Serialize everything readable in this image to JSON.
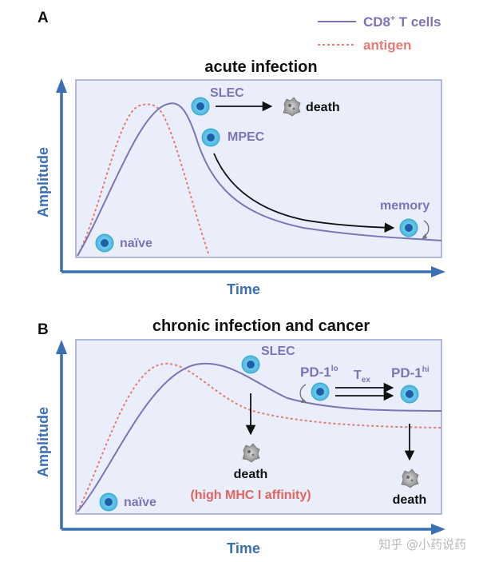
{
  "legend": {
    "cd8_base": "CD8",
    "cd8_sup": "+",
    "cd8_rest": " T cells",
    "antigen": "antigen"
  },
  "panel_a": {
    "letter": "A",
    "title": "acute infection",
    "y_axis": "Amplitude",
    "x_axis": "Time",
    "naive": "naïve",
    "slec": "SLEC",
    "death": "death",
    "mpec": "MPEC",
    "memory": "memory"
  },
  "panel_b": {
    "letter": "B",
    "title": "chronic infection and cancer",
    "y_axis": "Amplitude",
    "x_axis": "Time",
    "naive": "naïve",
    "slec": "SLEC",
    "death_left": "death",
    "affinity_note": "(high MHC I affinity)",
    "pd1lo_base": "PD-1",
    "pd1lo_sup": "lo",
    "tex_base": "T",
    "tex_sub": "ex",
    "pd1hi_base": "PD-1",
    "pd1hi_sup": "hi",
    "death_right": "death"
  },
  "watermark": "知乎 @小药说药",
  "colors": {
    "cd8_line": "#7b74b8",
    "antigen_line": "#e87a74",
    "axis": "#3a6fb5",
    "plot_bg": "#e9eefa",
    "plot_border": "#9aa6cf",
    "label_purple": "#7b74b8",
    "affinity_red": "#e0655f",
    "cell_outer": "#5cc4e6",
    "cell_inner": "#1f5ea8"
  }
}
